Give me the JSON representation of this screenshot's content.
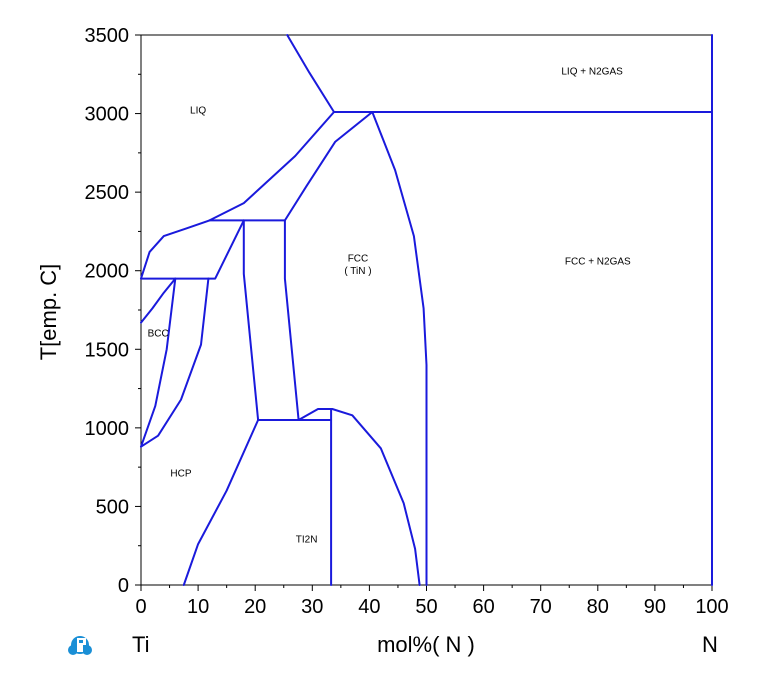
{
  "chart_data": {
    "type": "line",
    "title": "",
    "xlabel": "mol%( N )",
    "ylabel": "T[emp. C]",
    "xlim": [
      0,
      100
    ],
    "ylim": [
      0,
      3500
    ],
    "xticks": [
      "0",
      "10",
      "20",
      "30",
      "40",
      "50",
      "60",
      "70",
      "80",
      "90",
      "100"
    ],
    "yticks": [
      "0",
      "500",
      "1000",
      "1500",
      "2000",
      "2500",
      "3000",
      "3500"
    ],
    "x_end_labels": {
      "left": "Ti",
      "right": "N"
    },
    "grid": false,
    "line_color": "#1a1adc",
    "regions": [
      {
        "label": "LIQ",
        "x": 10,
        "y": 3000
      },
      {
        "label": "LIQ + N2GAS",
        "x": 79,
        "y": 3250
      },
      {
        "label": "FCC",
        "x": 38,
        "y": 2060
      },
      {
        "label": "( TiN )",
        "x": 38,
        "y": 1980
      },
      {
        "label": "FCC + N2GAS",
        "x": 80,
        "y": 2040
      },
      {
        "label": "BCC",
        "x": 3,
        "y": 1580
      },
      {
        "label": "HCP",
        "x": 7,
        "y": 690
      },
      {
        "label": "TI2N",
        "x": 29,
        "y": 270
      }
    ],
    "series": [
      {
        "points": [
          [
            25.6,
            3500
          ],
          [
            29.5,
            3260
          ],
          [
            33.8,
            3010
          ]
        ]
      },
      {
        "points": [
          [
            33.8,
            3010
          ],
          [
            100,
            3010
          ]
        ]
      },
      {
        "points": [
          [
            100,
            3010
          ],
          [
            100,
            3500
          ]
        ]
      },
      {
        "points": [
          [
            100,
            0
          ],
          [
            100,
            3010
          ]
        ]
      },
      {
        "points": [
          [
            33.8,
            3010
          ],
          [
            27,
            2730
          ],
          [
            18,
            2430
          ],
          [
            12,
            2320
          ]
        ]
      },
      {
        "points": [
          [
            40.5,
            3010
          ],
          [
            34,
            2820
          ],
          [
            29,
            2540
          ],
          [
            25.2,
            2320
          ]
        ]
      },
      {
        "points": [
          [
            40.5,
            3010
          ],
          [
            44.5,
            2640
          ],
          [
            47.8,
            2220
          ],
          [
            49.5,
            1760
          ],
          [
            50,
            1400
          ],
          [
            50,
            0
          ]
        ]
      },
      {
        "points": [
          [
            0,
            1950
          ],
          [
            1.5,
            2120
          ],
          [
            4,
            2220
          ],
          [
            8,
            2270
          ],
          [
            12,
            2320
          ]
        ]
      },
      {
        "points": [
          [
            12,
            2320
          ],
          [
            25.2,
            2320
          ]
        ]
      },
      {
        "points": [
          [
            0,
            1670
          ],
          [
            2,
            1760
          ],
          [
            4,
            1860
          ],
          [
            6,
            1950
          ]
        ]
      },
      {
        "points": [
          [
            0,
            1950
          ],
          [
            11.8,
            1950
          ]
        ]
      },
      {
        "points": [
          [
            6,
            1950
          ],
          [
            4.5,
            1500
          ],
          [
            2.5,
            1140
          ],
          [
            0,
            880
          ]
        ]
      },
      {
        "points": [
          [
            11.8,
            1950
          ],
          [
            10.5,
            1530
          ],
          [
            7,
            1180
          ],
          [
            3,
            950
          ],
          [
            0,
            880
          ]
        ]
      },
      {
        "points": [
          [
            18,
            2320
          ],
          [
            18,
            1980
          ],
          [
            20.5,
            1050
          ]
        ]
      },
      {
        "points": [
          [
            18,
            2320
          ],
          [
            13,
            1950
          ],
          [
            11.8,
            1950
          ]
        ]
      },
      {
        "points": [
          [
            25.2,
            2320
          ],
          [
            25.2,
            1950
          ],
          [
            27.6,
            1050
          ]
        ]
      },
      {
        "points": [
          [
            20.5,
            1050
          ],
          [
            33.3,
            1050
          ]
        ]
      },
      {
        "points": [
          [
            20.5,
            1050
          ],
          [
            15,
            600
          ],
          [
            10,
            260
          ],
          [
            7.5,
            0
          ]
        ]
      },
      {
        "points": [
          [
            27.6,
            1050
          ],
          [
            31,
            1120
          ],
          [
            33.5,
            1120
          ],
          [
            37,
            1080
          ],
          [
            42,
            870
          ],
          [
            46,
            520
          ],
          [
            48,
            230
          ],
          [
            48.8,
            0
          ]
        ]
      },
      {
        "points": [
          [
            33.3,
            1120
          ],
          [
            33.3,
            0
          ]
        ]
      }
    ]
  }
}
